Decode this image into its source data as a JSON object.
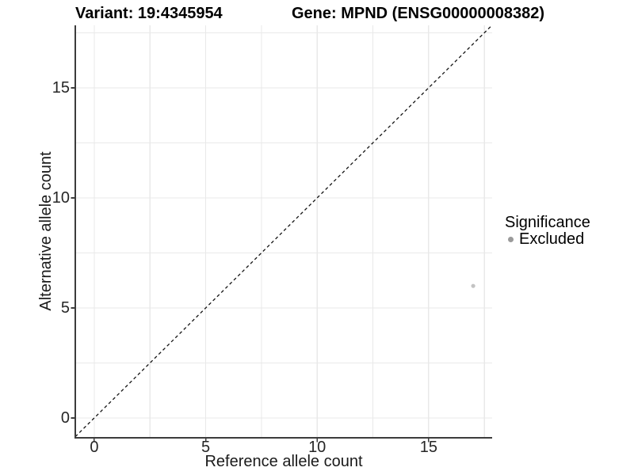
{
  "chart_data": {
    "type": "scatter",
    "title_left": "Variant: 19:4345954",
    "title_right": "Gene: MPND (ENSG00000008382)",
    "xlabel": "Reference allele count",
    "ylabel": "Alternative allele count",
    "xlim": [
      -0.85,
      17.85
    ],
    "ylim": [
      -0.9,
      17.84
    ],
    "xticks": [
      0,
      5,
      10,
      15
    ],
    "yticks": [
      0,
      5,
      10,
      15
    ],
    "xgrid": [
      0,
      2.5,
      5,
      7.5,
      10,
      12.5,
      15,
      17.5
    ],
    "ygrid": [
      0,
      2.5,
      5,
      7.5,
      10,
      12.5,
      15,
      17.5
    ],
    "grid_on": true,
    "legend_position": "right",
    "points": [
      {
        "x": 17,
        "y": 6,
        "series": "Excluded",
        "color": "#c3c3c3",
        "radius": 2.6
      }
    ],
    "reference_line": {
      "type": "identity",
      "slope": 1,
      "intercept": 0,
      "x1": -0.85,
      "y1": -0.85,
      "x2": 17.84,
      "y2": 17.84,
      "style": "dashed",
      "color": "#141414"
    },
    "legend": {
      "title": "Significance",
      "items": [
        {
          "label": "Excluded",
          "color": "#9a9a9a"
        }
      ]
    }
  },
  "colors": {
    "background": "#ffffff",
    "grid": "#e9e9e9",
    "axis_line": "#3c3c3c",
    "tick_mark": "#3c3c3c",
    "tick_text": "#262626",
    "title_text": "#000000"
  }
}
